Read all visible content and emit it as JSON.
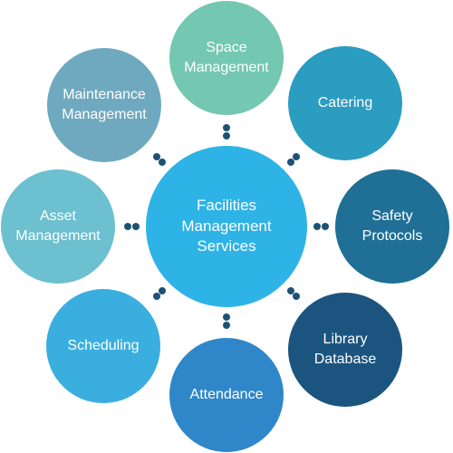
{
  "diagram": {
    "center": {
      "label": "Facilities Management Services",
      "color": "#2eb3e6"
    },
    "nodes": [
      {
        "id": "space-management",
        "label": "Space Management",
        "color": "#74c7b0"
      },
      {
        "id": "catering",
        "label": "Catering",
        "color": "#2a9dc0"
      },
      {
        "id": "safety-protocols",
        "label": "Safety Protocols",
        "color": "#1f6f96"
      },
      {
        "id": "library-database",
        "label": "Library Database",
        "color": "#1b557f"
      },
      {
        "id": "attendance",
        "label": "Attendance",
        "color": "#2f87c9"
      },
      {
        "id": "scheduling",
        "label": "Scheduling",
        "color": "#3aaedf"
      },
      {
        "id": "asset-management",
        "label": "Asset Management",
        "color": "#6cc0cf"
      },
      {
        "id": "maintenance-management",
        "label": "Maintenance Management",
        "color": "#6fa9bf"
      }
    ],
    "connector_color": "#1d5275"
  }
}
